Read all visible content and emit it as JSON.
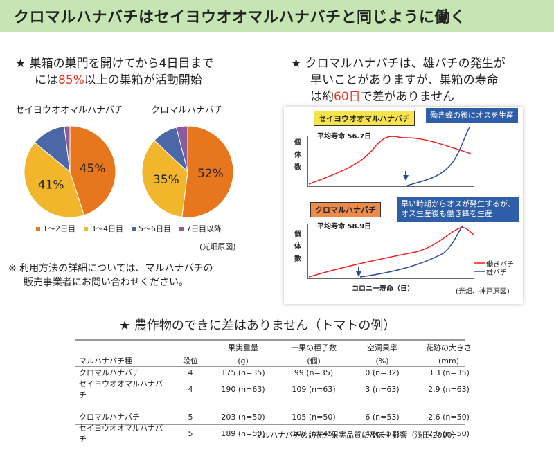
{
  "banner": {
    "title": "クロマルハナバチはセイヨウオオマルハナバチと同じように働く"
  },
  "left": {
    "line1": "★ 巣箱の巣門を開けてから4日目まで",
    "line2_pre": "には",
    "line2_highlight": "85%",
    "line2_post": "以上の巣箱が活動開始",
    "pie_titles": [
      "セイヨウオオマルハナバチ",
      "クロマルハナバチ"
    ],
    "legend": [
      "1〜2日目",
      "3〜4日目",
      "5〜6日目",
      "7日目以降"
    ],
    "legend_colors": [
      "#e8761c",
      "#f2b62c",
      "#4a68a8",
      "#8a5c9e"
    ],
    "source": "(光畑原図)",
    "note_line1": "※ 利用方法の詳細については、マルハナバチの",
    "note_line2": "販売事業者にお問い合わせください。"
  },
  "right": {
    "line1": "★ クロマルハナバチは、雄バチの発生が",
    "line2": "早いことがありますが、巣箱の寿命",
    "line3_pre": "は約",
    "line3_highlight": "60日",
    "line3_post": "で差がありません",
    "tag_top": "セイヨウオオマルハナバチ",
    "tag_bottom": "クロマルハナバチ",
    "callout_top": "働き蜂の後にオスを生産",
    "callout_bottom_1": "早い時期からオスが発生するが、",
    "callout_bottom_2": "オス生産後も働き蜂を生産",
    "life_top": "平均寿命 56.7日",
    "life_bottom": "平均寿命 58.9日",
    "y_label_chars": [
      "個",
      "体",
      "数"
    ],
    "x_axis": "コロニー寿命（日）",
    "legend_worker": "働きバチ",
    "legend_male": "雄バチ",
    "source": "(光畑、神戸原図)"
  },
  "table_section": {
    "title": "★ 農作物のできに差はありません（トマトの例）",
    "headers": [
      "マルハナバチ種",
      "段位",
      "果実重量",
      "一果の種子数",
      "空洞果率",
      "花跡の大きさ"
    ],
    "units": [
      "",
      "",
      "(g)",
      "(個)",
      "(%)",
      "(mm)"
    ],
    "rows": [
      [
        "クロマルハナバチ",
        "4",
        "175 (n=35)",
        "99 (n=35)",
        "0 (n=32)",
        "3.3 (n=35)"
      ],
      [
        "セイヨウオオマルハナバチ",
        "4",
        "190 (n=63)",
        "109 (n=63)",
        "3 (n=63)",
        "2.9 (n=63)"
      ],
      [
        "クロマルハナバチ",
        "5",
        "203 (n=50)",
        "105 (n=50)",
        "6 (n=53)",
        "2.6 (n=50)"
      ],
      [
        "セイヨウオオマルハナバチ",
        "5",
        "189 (n=50)",
        "108 (n=45)",
        "4 (n=51)",
        "2.6 (n=50)"
      ]
    ],
    "citation": "マルハナバチの訪花が果実品質に及ぼす影響（浅田,2000）"
  },
  "chart_data": [
    {
      "type": "pie",
      "title": "セイヨウオオマルハナバチ",
      "categories": [
        "1〜2日目",
        "3〜4日目",
        "5〜6日目",
        "7日目以降"
      ],
      "values": [
        45,
        41,
        12,
        2
      ],
      "labels": [
        "45%",
        "41%",
        "",
        ""
      ],
      "colors": [
        "#e8761c",
        "#f2b62c",
        "#4a68a8",
        "#8a5c9e"
      ]
    },
    {
      "type": "pie",
      "title": "クロマルハナバチ",
      "categories": [
        "1〜2日目",
        "3〜4日目",
        "5〜6日目",
        "7日目以降"
      ],
      "values": [
        52,
        35,
        9,
        4
      ],
      "labels": [
        "52%",
        "35%",
        "",
        ""
      ],
      "colors": [
        "#e8761c",
        "#f2b62c",
        "#4a68a8",
        "#8a5c9e"
      ]
    }
  ]
}
